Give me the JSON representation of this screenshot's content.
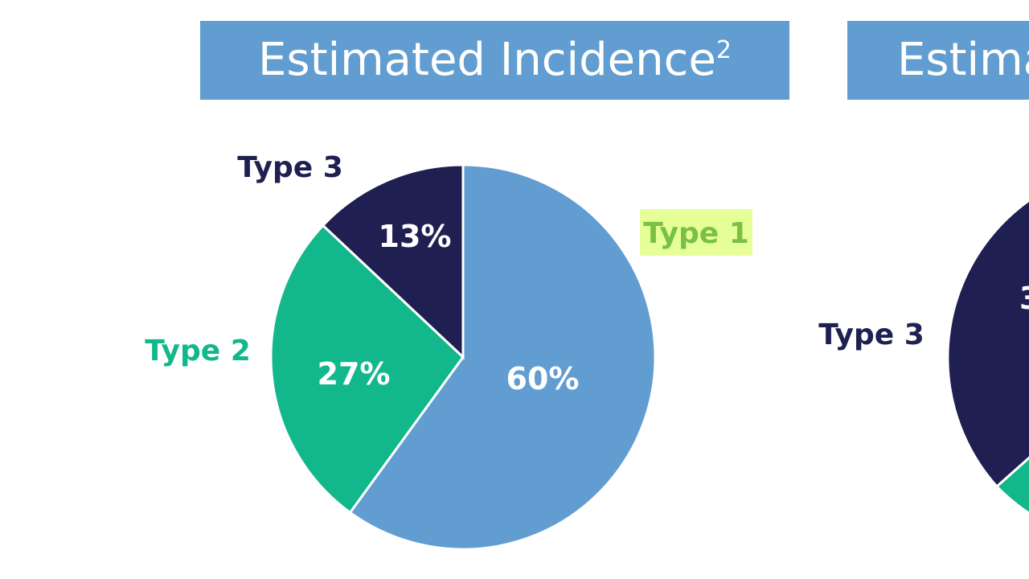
{
  "colors": {
    "type1": "#629dd1",
    "type2": "#12b78b",
    "type3": "#1f1f52",
    "highlight": "#e6ff99",
    "banner": "#629dd1"
  },
  "chart_data": [
    {
      "type": "pie",
      "title": "Estimated Incidence",
      "title_superscript": "2",
      "slices": [
        {
          "label": "Type 1",
          "value": 60,
          "value_label": "60%",
          "color": "#629dd1"
        },
        {
          "label": "Type 2",
          "value": 27,
          "value_label": "27%",
          "color": "#12b78b"
        },
        {
          "label": "Type 3",
          "value": 13,
          "value_label": "13%",
          "color": "#1f1f52"
        }
      ],
      "start_angle_deg": 0,
      "direction": "clockwise"
    },
    {
      "type": "pie",
      "title": "Estima",
      "partially_visible": true,
      "visible_labels": [
        "Type 3"
      ],
      "visible_value_fragment": "3"
    }
  ]
}
